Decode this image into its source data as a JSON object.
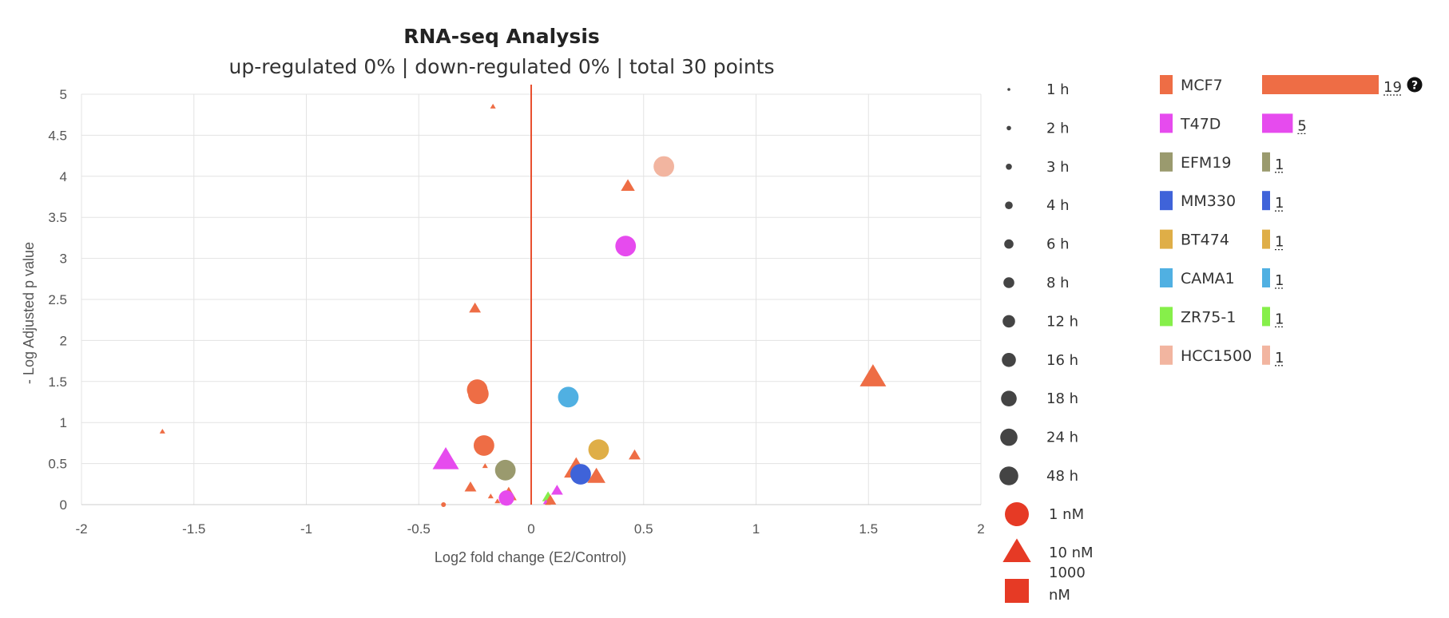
{
  "chart_data": {
    "type": "scatter",
    "title": "RNA-seq Analysis",
    "subtitle": "up-regulated 0% | down-regulated 0% | total 30 points",
    "xlabel": "Log2 fold change (E2/Control)",
    "ylabel": "- Log Adjusted p value",
    "xlim": [
      -2,
      2
    ],
    "ylim": [
      0,
      5
    ],
    "xticks": [
      "-2",
      "-1.5",
      "-1",
      "-0.5",
      "0",
      "0.5",
      "1",
      "1.5",
      "2"
    ],
    "yticks": [
      "0",
      "0.5",
      "1",
      "1.5",
      "2",
      "2.5",
      "3",
      "3.5",
      "4",
      "4.5",
      "5"
    ],
    "grid": true,
    "reference_line_x": 0,
    "points": [
      {
        "x": -0.17,
        "y": 4.85,
        "cell": "MCF7",
        "time": "1 h",
        "dose": "10 nM"
      },
      {
        "x": 0.43,
        "y": 3.88,
        "cell": "MCF7",
        "time": "6 h",
        "dose": "10 nM"
      },
      {
        "x": 0.59,
        "y": 4.12,
        "cell": "HCC1500",
        "time": "24 h",
        "dose": "1 nM"
      },
      {
        "x": 0.42,
        "y": 3.15,
        "cell": "T47D",
        "time": "24 h",
        "dose": "1 nM"
      },
      {
        "x": -0.25,
        "y": 2.39,
        "cell": "MCF7",
        "time": "4 h",
        "dose": "10 nM"
      },
      {
        "x": -1.64,
        "y": 0.89,
        "cell": "MCF7",
        "time": "1 h",
        "dose": "10 nM"
      },
      {
        "x": -0.24,
        "y": 1.4,
        "cell": "MCF7",
        "time": "24 h",
        "dose": "1 nM"
      },
      {
        "x": -0.235,
        "y": 1.35,
        "cell": "MCF7",
        "time": "24 h",
        "dose": "1 nM"
      },
      {
        "x": 0.165,
        "y": 1.31,
        "cell": "CAMA1",
        "time": "24 h",
        "dose": "1 nM"
      },
      {
        "x": 1.52,
        "y": 1.55,
        "cell": "MCF7",
        "time": "48 h",
        "dose": "10 nM"
      },
      {
        "x": -0.21,
        "y": 0.72,
        "cell": "MCF7",
        "time": "24 h",
        "dose": "1 nM"
      },
      {
        "x": 0.3,
        "y": 0.67,
        "cell": "BT474",
        "time": "24 h",
        "dose": "1 nM"
      },
      {
        "x": 0.46,
        "y": 0.6,
        "cell": "MCF7",
        "time": "4 h",
        "dose": "10 nM"
      },
      {
        "x": -0.38,
        "y": 0.54,
        "cell": "T47D",
        "time": "48 h",
        "dose": "10 nM"
      },
      {
        "x": -0.205,
        "y": 0.47,
        "cell": "MCF7",
        "time": "1 h",
        "dose": "10 nM"
      },
      {
        "x": -0.115,
        "y": 0.42,
        "cell": "EFM19",
        "time": "24 h",
        "dose": "1 nM"
      },
      {
        "x": 0.2,
        "y": 0.43,
        "cell": "MCF7",
        "time": "24 h",
        "dose": "10 nM"
      },
      {
        "x": 0.22,
        "y": 0.37,
        "cell": "MM330",
        "time": "24 h",
        "dose": "1 nM"
      },
      {
        "x": 0.29,
        "y": 0.34,
        "cell": "MCF7",
        "time": "12 h",
        "dose": "10 nM"
      },
      {
        "x": -0.27,
        "y": 0.21,
        "cell": "MCF7",
        "time": "4 h",
        "dose": "10 nM"
      },
      {
        "x": 0.115,
        "y": 0.17,
        "cell": "T47D",
        "time": "4 h",
        "dose": "10 nM"
      },
      {
        "x": -0.18,
        "y": 0.1,
        "cell": "MCF7",
        "time": "1 h",
        "dose": "10 nM"
      },
      {
        "x": -0.1,
        "y": 0.12,
        "cell": "MCF7",
        "time": "8 h",
        "dose": "10 nM"
      },
      {
        "x": -0.11,
        "y": 0.08,
        "cell": "T47D",
        "time": "12 h",
        "dose": "1 nM"
      },
      {
        "x": -0.15,
        "y": 0.04,
        "cell": "MCF7",
        "time": "1 h",
        "dose": "10 nM"
      },
      {
        "x": 0.075,
        "y": 0.09,
        "cell": "ZR75-1",
        "time": "4 h",
        "dose": "10 nM"
      },
      {
        "x": 0.085,
        "y": 0.05,
        "cell": "MCF7",
        "time": "4 h",
        "dose": "10 nM"
      },
      {
        "x": 0.065,
        "y": 0.03,
        "cell": "T47D",
        "time": "1 h",
        "dose": "10 nM"
      },
      {
        "x": -0.39,
        "y": 0.0,
        "cell": "MCF7",
        "time": "1 h",
        "dose": "1 nM"
      },
      {
        "x": 0.075,
        "y": 0.02,
        "cell": "MCF7",
        "time": "1 h",
        "dose": "10 nM"
      }
    ],
    "legend_timepoints": [
      "1 h",
      "2 h",
      "3 h",
      "4 h",
      "6 h",
      "8 h",
      "12 h",
      "16 h",
      "18 h",
      "24 h",
      "48 h"
    ],
    "legend_doses": [
      "1 nM",
      "10 nM",
      "1000 nM"
    ],
    "cell_lines": [
      {
        "name": "MCF7",
        "count": 19,
        "color": "#ee6d45"
      },
      {
        "name": "T47D",
        "count": 5,
        "color": "#e64bee"
      },
      {
        "name": "EFM19",
        "count": 1,
        "color": "#9a9a6e"
      },
      {
        "name": "MM330",
        "count": 1,
        "color": "#3f63d9"
      },
      {
        "name": "BT474",
        "count": 1,
        "color": "#dfae47"
      },
      {
        "name": "CAMA1",
        "count": 1,
        "color": "#50b0e2"
      },
      {
        "name": "ZR75-1",
        "count": 1,
        "color": "#86ef4a"
      },
      {
        "name": "HCC1500",
        "count": 1,
        "color": "#f2b5a0"
      }
    ]
  },
  "colors": {
    "grid": "#e3e3e3",
    "axis": "#cccccc",
    "reference_line": "#e8502f",
    "legend_marker": "#444444",
    "dose_marker": "#e63a25"
  },
  "icons": {
    "help": "question-circle-icon"
  }
}
